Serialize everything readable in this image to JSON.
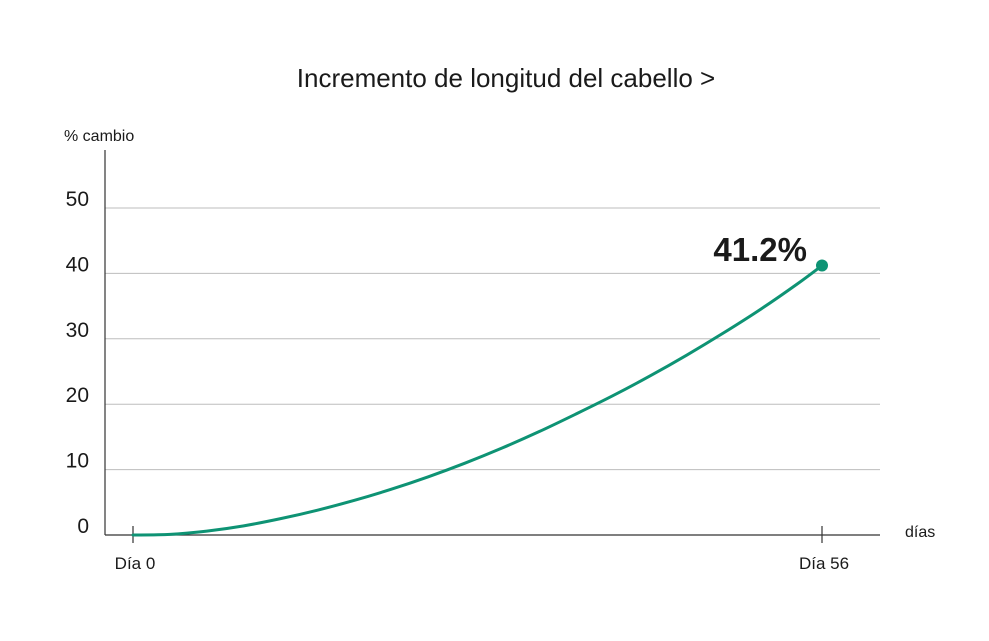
{
  "chart_data": {
    "type": "line",
    "title": "Incremento de longitud del cabello >",
    "ylabel": "% cambio",
    "xlabel": "días",
    "x_ticks": [
      {
        "x": 0,
        "label": "Día 0"
      },
      {
        "x": 56,
        "label": "Día 56"
      }
    ],
    "y_ticks": [
      0,
      10,
      20,
      30,
      40,
      50
    ],
    "xlim": [
      -2.3,
      61
    ],
    "ylim": [
      0,
      57
    ],
    "grid": true,
    "series": [
      {
        "x": [
          0,
          3,
          6,
          9,
          12,
          15,
          18,
          21,
          24,
          27,
          30,
          33,
          36,
          39,
          42,
          45,
          48,
          51,
          54,
          56
        ],
        "values": [
          0,
          0.1,
          0.6,
          1.4,
          2.5,
          3.8,
          5.3,
          7.0,
          8.9,
          11.0,
          13.3,
          15.8,
          18.5,
          21.3,
          24.3,
          27.5,
          30.9,
          34.5,
          38.4,
          41.2
        ]
      }
    ],
    "end_point": {
      "x": 56,
      "y": 41.2,
      "label": "41.2%"
    },
    "colors": {
      "line": "#0e9374",
      "axis": "#333333",
      "grid": "#bdbdbd",
      "text": "#1a1a1a"
    }
  }
}
